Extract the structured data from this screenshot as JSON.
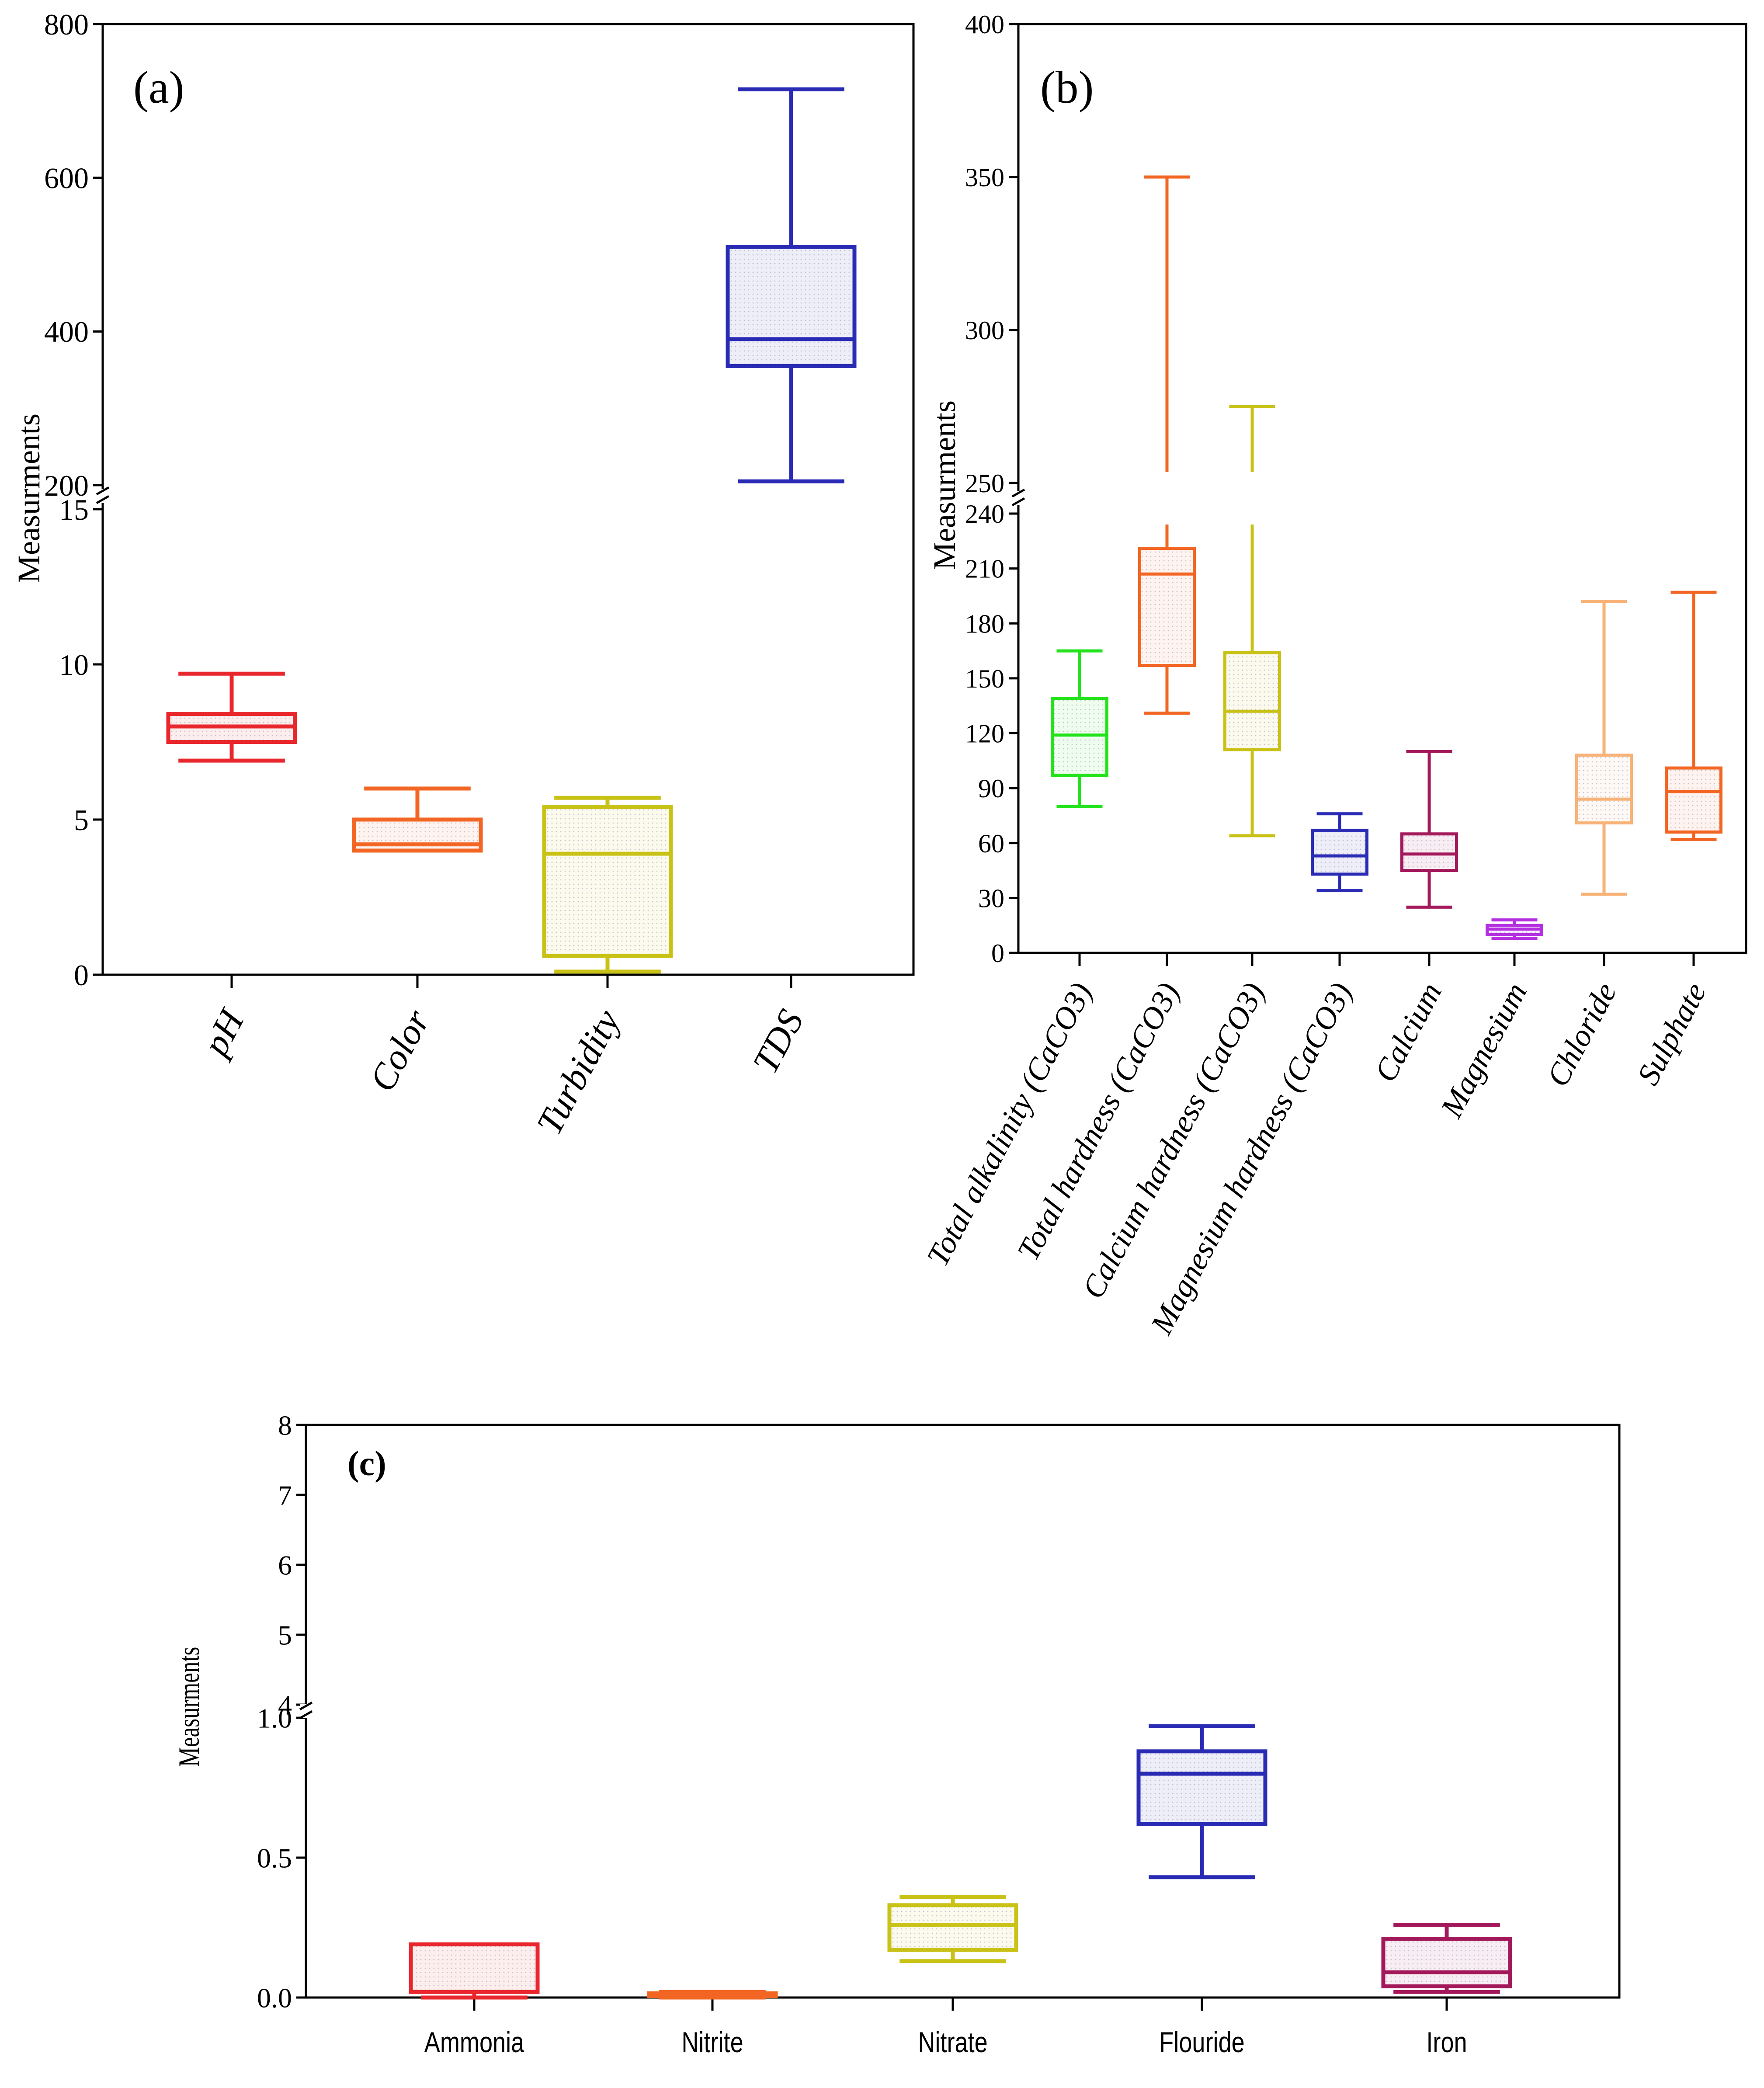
{
  "chart_data": [
    {
      "panel": "a",
      "type": "boxplot",
      "label": "(a)",
      "ylabel": "Measurments",
      "y_break": true,
      "lower_ylim": [
        0,
        15
      ],
      "upper_ylim": [
        200,
        800
      ],
      "lower_ticks": [
        "0",
        "5",
        "10",
        "15"
      ],
      "upper_ticks": [
        "200",
        "400",
        "600",
        "800"
      ],
      "categories": [
        "pH",
        "Color",
        "Turbidity",
        "TDS"
      ],
      "boxes": [
        {
          "name": "pH",
          "min": 6.9,
          "q1": 7.5,
          "median": 8.0,
          "q3": 8.4,
          "max": 9.7,
          "color": "#e8262b"
        },
        {
          "name": "Color",
          "min": 4.0,
          "q1": 4.0,
          "median": 4.2,
          "q3": 5.0,
          "max": 6.0,
          "color": "#f26522"
        },
        {
          "name": "Turbidity",
          "min": 0.1,
          "q1": 0.6,
          "median": 3.9,
          "q3": 5.4,
          "max": 5.7,
          "color": "#c9c216"
        },
        {
          "name": "TDS",
          "min": 205,
          "q1": 355,
          "median": 390,
          "q3": 510,
          "max": 715,
          "color": "#2a2bb5"
        }
      ]
    },
    {
      "panel": "b",
      "type": "boxplot",
      "label": "(b)",
      "ylabel": "Measurments",
      "y_break": true,
      "lower_ylim": [
        0,
        240
      ],
      "upper_ylim": [
        250,
        400
      ],
      "lower_ticks": [
        "0",
        "30",
        "60",
        "90",
        "120",
        "150",
        "180",
        "210",
        "240"
      ],
      "upper_ticks": [
        "250",
        "300",
        "350",
        "400"
      ],
      "categories": [
        "Total alkalinity (CaCO3)",
        "Total hardness (CaCO3)",
        "Calcium hardness (CaCO3)",
        "Magnesium hardness (CaCO3)",
        "Calcium",
        "Magnesium",
        "Chloride",
        "Sulphate"
      ],
      "boxes": [
        {
          "name": "Total alkalinity (CaCO3)",
          "min": 80,
          "q1": 97,
          "median": 119,
          "q3": 139,
          "max": 165,
          "color": "#22e31a"
        },
        {
          "name": "Total hardness (CaCO3)",
          "min": 131,
          "q1": 157,
          "median": 207,
          "q3": 221,
          "max": 350,
          "color": "#f26522"
        },
        {
          "name": "Calcium hardness (CaCO3)",
          "min": 64,
          "q1": 111,
          "median": 132,
          "q3": 164,
          "max": 275,
          "color": "#c9c216"
        },
        {
          "name": "Magnesium hardness (CaCO3)",
          "min": 34,
          "q1": 43,
          "median": 53,
          "q3": 67,
          "max": 76,
          "color": "#2a2bb5"
        },
        {
          "name": "Calcium",
          "min": 25,
          "q1": 45,
          "median": 54,
          "q3": 65,
          "max": 110,
          "color": "#a3185a"
        },
        {
          "name": "Magnesium",
          "min": 8,
          "q1": 10,
          "median": 13,
          "q3": 15,
          "max": 18,
          "color": "#b42fe0"
        },
        {
          "name": "Chloride",
          "min": 32,
          "q1": 71,
          "median": 84,
          "q3": 108,
          "max": 192,
          "color": "#f7b277"
        },
        {
          "name": "Sulphate",
          "min": 62,
          "q1": 66,
          "median": 88,
          "q3": 101,
          "max": 197,
          "color": "#f26522"
        }
      ]
    },
    {
      "panel": "c",
      "type": "boxplot",
      "label": "(c)",
      "ylabel": "Measurments",
      "y_break": true,
      "lower_ylim": [
        0,
        1.0
      ],
      "upper_ylim": [
        4,
        8
      ],
      "lower_ticks": [
        "0.0",
        "0.5",
        "1.0"
      ],
      "upper_ticks": [
        "4",
        "5",
        "6",
        "7",
        "8"
      ],
      "categories": [
        "Ammonia",
        "Nitrite",
        "Nitrate",
        "Flouride",
        "Iron"
      ],
      "boxes": [
        {
          "name": "Ammonia",
          "min": 0.0,
          "q1": 0.02,
          "median": 0.02,
          "q3": 0.19,
          "max": 0.19,
          "color": "#e8262b"
        },
        {
          "name": "Nitrite",
          "min": 0.0,
          "q1": 0.005,
          "median": 0.01,
          "q3": 0.015,
          "max": 0.02,
          "color": "#f26522"
        },
        {
          "name": "Nitrate",
          "min": 0.13,
          "q1": 0.17,
          "median": 0.26,
          "q3": 0.33,
          "max": 0.36,
          "color": "#c9c216"
        },
        {
          "name": "Flouride",
          "min": 0.43,
          "q1": 0.62,
          "median": 0.8,
          "q3": 0.88,
          "max": 0.97,
          "color": "#2a2bb5"
        },
        {
          "name": "Iron",
          "min": 0.02,
          "q1": 0.04,
          "median": 0.09,
          "q3": 0.21,
          "max": 0.26,
          "color": "#a3185a"
        }
      ]
    }
  ]
}
